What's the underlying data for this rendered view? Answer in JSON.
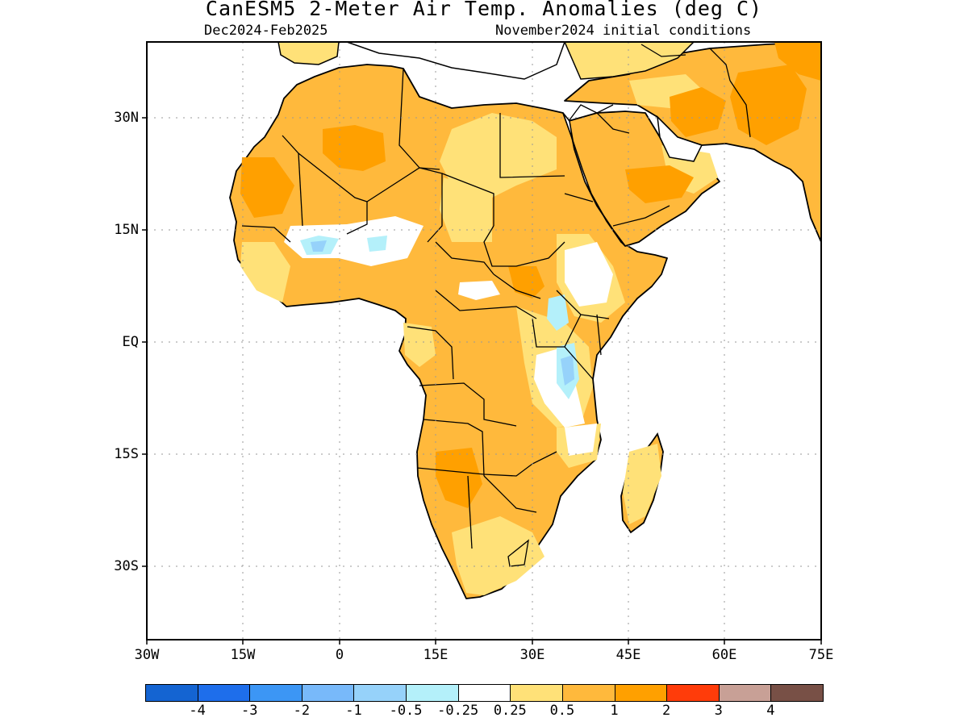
{
  "title": "CanESM5 2-Meter Air Temp. Anomalies (deg C)",
  "subtitle_left": "Dec2024-Feb2025",
  "subtitle_right": "November2024 initial conditions",
  "map": {
    "region": "Africa",
    "lon_range": [
      -30,
      75
    ],
    "lat_range": [
      -40,
      40
    ],
    "grid": "dotted",
    "x_ticks": [
      "30W",
      "15W",
      "0",
      "15E",
      "30E",
      "45E",
      "60E",
      "75E"
    ],
    "y_ticks": [
      "30N",
      "15N",
      "EQ",
      "15S",
      "30S"
    ]
  },
  "colorbar": {
    "colors": [
      "#1464d2",
      "#1e6eeb",
      "#3c96f5",
      "#78b9fa",
      "#96d2fa",
      "#b4f0fa",
      "#ffffff",
      "#ffe178",
      "#ffb93c",
      "#ffa000",
      "#ff3c0a",
      "#c8a096",
      "#785046"
    ],
    "labels": [
      "-4",
      "-3",
      "-2",
      "-1",
      "-0.5",
      "-0.25",
      "0.25",
      "0.5",
      "1",
      "2",
      "3",
      "4"
    ]
  }
}
